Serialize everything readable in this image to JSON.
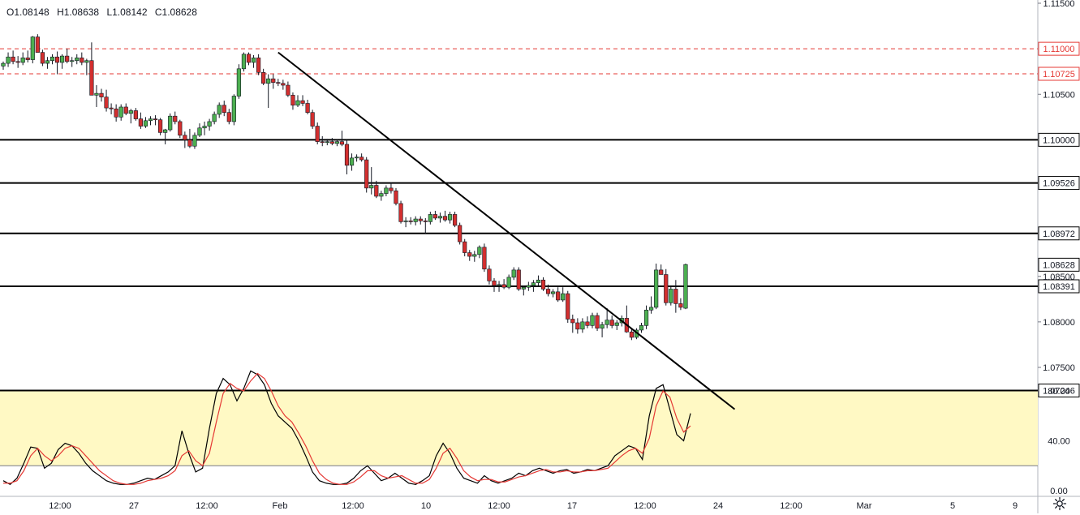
{
  "header": {
    "open": "O1.08148",
    "high": "H1.08638",
    "low": "L1.08142",
    "close": "C1.08628"
  },
  "icons": {
    "settings": "gear-icon"
  },
  "colors": {
    "up": "#26a69a",
    "up_fill": "#4caf50",
    "down": "#d32f2f",
    "support_line": "#000000",
    "resistance_dashed": "#e53935",
    "stoch_band": "#fff9c4",
    "stoch_k": "#000000",
    "stoch_d": "#e53935"
  },
  "chart_data": [
    {
      "type": "candlestick",
      "title": "",
      "ylim": [
        1.0705,
        1.1155
      ],
      "y_ticks": [
        "1.11500",
        "1.10500",
        "1.08500",
        "1.08000",
        "1.07500"
      ],
      "x_ticks": [
        "12:00",
        "27",
        "12:00",
        "Feb",
        "12:00",
        "10",
        "12:00",
        "17",
        "12:00",
        "24",
        "12:00",
        "Mar",
        "5",
        "9"
      ],
      "horizontal_lines": [
        {
          "value": 1.1,
          "label": "1.10000",
          "style": "solid"
        },
        {
          "value": 1.09526,
          "label": "1.09526",
          "style": "solid"
        },
        {
          "value": 1.08972,
          "label": "1.08972",
          "style": "solid"
        },
        {
          "value": 1.08391,
          "label": "1.08391",
          "style": "solid"
        },
        {
          "value": 1.07246,
          "label": "1.07246",
          "style": "solid"
        },
        {
          "value": 1.11,
          "label": "1.11000",
          "style": "dashed"
        },
        {
          "value": 1.10725,
          "label": "1.10725",
          "style": "dashed"
        }
      ],
      "last_price_label": "1.08628",
      "trendline": {
        "from": [
          56,
          1.1096
        ],
        "to": [
          149,
          1.0704
        ]
      },
      "candles": [
        [
          1.1081,
          1.1086,
          1.1077,
          1.1084
        ],
        [
          1.1084,
          1.1096,
          1.108,
          1.1091
        ],
        [
          1.1091,
          1.1098,
          1.1083,
          1.1086
        ],
        [
          1.1086,
          1.1092,
          1.1079,
          1.1085
        ],
        [
          1.1085,
          1.1096,
          1.1082,
          1.109
        ],
        [
          1.109,
          1.1098,
          1.1085,
          1.1088
        ],
        [
          1.1088,
          1.1114,
          1.1084,
          1.1113
        ],
        [
          1.1113,
          1.1116,
          1.1096,
          1.1096
        ],
        [
          1.1096,
          1.1099,
          1.1081,
          1.1084
        ],
        [
          1.1084,
          1.1091,
          1.1078,
          1.1087
        ],
        [
          1.1087,
          1.1094,
          1.1083,
          1.1091
        ],
        [
          1.1091,
          1.1097,
          1.1072,
          1.1085
        ],
        [
          1.1085,
          1.1094,
          1.1078,
          1.1092
        ],
        [
          1.1092,
          1.11,
          1.1084,
          1.1086
        ],
        [
          1.1086,
          1.1091,
          1.108,
          1.1087
        ],
        [
          1.1087,
          1.1094,
          1.1083,
          1.109
        ],
        [
          1.109,
          1.1096,
          1.1082,
          1.1085
        ],
        [
          1.1085,
          1.1089,
          1.1071,
          1.1087
        ],
        [
          1.1087,
          1.1107,
          1.1049,
          1.1049
        ],
        [
          1.1049,
          1.106,
          1.1036,
          1.1051
        ],
        [
          1.1051,
          1.1056,
          1.1042,
          1.1047
        ],
        [
          1.1047,
          1.1055,
          1.1031,
          1.1035
        ],
        [
          1.1035,
          1.104,
          1.1028,
          1.1034
        ],
        [
          1.1034,
          1.1039,
          1.102,
          1.1025
        ],
        [
          1.1025,
          1.1039,
          1.1021,
          1.1036
        ],
        [
          1.1036,
          1.104,
          1.1027,
          1.1029
        ],
        [
          1.1029,
          1.1034,
          1.1018,
          1.1032
        ],
        [
          1.1032,
          1.1035,
          1.1021,
          1.1023
        ],
        [
          1.1023,
          1.103,
          1.1012,
          1.1015
        ],
        [
          1.1015,
          1.1025,
          1.1013,
          1.1021
        ],
        [
          1.1021,
          1.1026,
          1.1016,
          1.1023
        ],
        [
          1.1023,
          1.1027,
          1.1016,
          1.1022
        ],
        [
          1.1022,
          1.1024,
          1.1005,
          1.1008
        ],
        [
          1.1008,
          1.1012,
          1.0995,
          1.1011
        ],
        [
          1.1011,
          1.1029,
          1.1009,
          1.1026
        ],
        [
          1.1026,
          1.1031,
          1.1017,
          1.102
        ],
        [
          1.102,
          1.1022,
          1.1002,
          1.1005
        ],
        [
          1.1005,
          1.1009,
          1.0991,
          1.1
        ],
        [
          1.1,
          1.1012,
          1.0991,
          1.0993
        ],
        [
          1.0993,
          1.1008,
          1.099,
          1.1005
        ],
        [
          1.1005,
          1.1018,
          1.1003,
          1.1013
        ],
        [
          1.1013,
          1.102,
          1.1005,
          1.1015
        ],
        [
          1.1015,
          1.1023,
          1.101,
          1.102
        ],
        [
          1.102,
          1.1031,
          1.1017,
          1.1028
        ],
        [
          1.1028,
          1.1041,
          1.1024,
          1.1038
        ],
        [
          1.1038,
          1.1043,
          1.1026,
          1.103
        ],
        [
          1.103,
          1.1034,
          1.1017,
          1.102
        ],
        [
          1.102,
          1.105,
          1.1016,
          1.1048
        ],
        [
          1.1048,
          1.1083,
          1.1045,
          1.1078
        ],
        [
          1.1078,
          1.1096,
          1.1075,
          1.1094
        ],
        [
          1.1094,
          1.1096,
          1.1082,
          1.1085
        ],
        [
          1.1085,
          1.1093,
          1.1079,
          1.109
        ],
        [
          1.109,
          1.1094,
          1.1071,
          1.1074
        ],
        [
          1.1074,
          1.1078,
          1.106,
          1.1062
        ],
        [
          1.1062,
          1.1072,
          1.1035,
          1.1067
        ],
        [
          1.1067,
          1.1072,
          1.1056,
          1.1063
        ],
        [
          1.1063,
          1.1067,
          1.1059,
          1.1062
        ],
        [
          1.1062,
          1.1066,
          1.1055,
          1.106
        ],
        [
          1.106,
          1.1064,
          1.1047,
          1.1049
        ],
        [
          1.1049,
          1.1052,
          1.1033,
          1.1038
        ],
        [
          1.1038,
          1.1049,
          1.1036,
          1.1043
        ],
        [
          1.1043,
          1.1049,
          1.1037,
          1.104
        ],
        [
          1.104,
          1.1044,
          1.1028,
          1.103
        ],
        [
          1.103,
          1.1033,
          1.1012,
          1.1015
        ],
        [
          1.1015,
          1.1019,
          1.0995,
          1.0998
        ],
        [
          1.0998,
          1.1004,
          1.0993,
          1.0997
        ],
        [
          1.0997,
          1.1001,
          1.0994,
          1.0998
        ],
        [
          1.0998,
          1.1002,
          1.0994,
          1.0996
        ],
        [
          1.0996,
          1.1,
          1.0993,
          1.0998
        ],
        [
          1.0998,
          1.101,
          1.0993,
          1.0995
        ],
        [
          1.0995,
          1.1,
          1.0962,
          1.0972
        ],
        [
          1.0972,
          1.0985,
          1.0966,
          1.098
        ],
        [
          1.098,
          1.0984,
          1.0976,
          1.0981
        ],
        [
          1.0981,
          1.0985,
          1.0976,
          1.0978
        ],
        [
          1.0978,
          1.0981,
          1.0942,
          1.0947
        ],
        [
          1.0947,
          1.097,
          1.094,
          1.095
        ],
        [
          1.095,
          1.0955,
          1.0936,
          1.0938
        ],
        [
          1.0938,
          1.0944,
          1.0933,
          1.0941
        ],
        [
          1.0941,
          1.095,
          1.0938,
          1.0947
        ],
        [
          1.0947,
          1.0953,
          1.0941,
          1.0944
        ],
        [
          1.0944,
          1.0947,
          1.0928,
          1.093
        ],
        [
          1.093,
          1.0933,
          1.0908,
          1.091
        ],
        [
          1.091,
          1.0915,
          1.0904,
          1.0911
        ],
        [
          1.0911,
          1.0915,
          1.0907,
          1.091
        ],
        [
          1.091,
          1.0916,
          1.0906,
          1.0913
        ],
        [
          1.0913,
          1.0916,
          1.0907,
          1.0911
        ],
        [
          1.0911,
          1.0914,
          1.0897,
          1.091
        ],
        [
          1.091,
          1.0921,
          1.0907,
          1.0918
        ],
        [
          1.0918,
          1.0922,
          1.0912,
          1.0914
        ],
        [
          1.0914,
          1.092,
          1.0909,
          1.0916
        ],
        [
          1.0916,
          1.0922,
          1.091,
          1.0912
        ],
        [
          1.0912,
          1.0921,
          1.0908,
          1.0918
        ],
        [
          1.0918,
          1.0921,
          1.0904,
          1.0906
        ],
        [
          1.0906,
          1.0909,
          1.0885,
          1.0888
        ],
        [
          1.0888,
          1.0891,
          1.0872,
          1.0876
        ],
        [
          1.0876,
          1.0879,
          1.0867,
          1.0872
        ],
        [
          1.0872,
          1.0878,
          1.0866,
          1.0874
        ],
        [
          1.0874,
          1.0884,
          1.087,
          1.0882
        ],
        [
          1.0882,
          1.0886,
          1.0855,
          1.0858
        ],
        [
          1.0858,
          1.0862,
          1.0841,
          1.0845
        ],
        [
          1.0845,
          1.0848,
          1.0833,
          1.084
        ],
        [
          1.084,
          1.0845,
          1.0833,
          1.0841
        ],
        [
          1.0841,
          1.0847,
          1.0836,
          1.0838
        ],
        [
          1.0838,
          1.0852,
          1.0836,
          1.0849
        ],
        [
          1.0849,
          1.086,
          1.0846,
          1.0857
        ],
        [
          1.0857,
          1.086,
          1.0834,
          1.0836
        ],
        [
          1.0836,
          1.084,
          1.0829,
          1.0838
        ],
        [
          1.0838,
          1.0844,
          1.0834,
          1.084
        ],
        [
          1.084,
          1.0846,
          1.0833,
          1.0843
        ],
        [
          1.0843,
          1.0851,
          1.084,
          1.0846
        ],
        [
          1.0846,
          1.0849,
          1.0834,
          1.0836
        ],
        [
          1.0836,
          1.0841,
          1.0828,
          1.0831
        ],
        [
          1.0831,
          1.0836,
          1.0827,
          1.0833
        ],
        [
          1.0833,
          1.0838,
          1.0822,
          1.0824
        ],
        [
          1.0824,
          1.0838,
          1.0822,
          1.0831
        ],
        [
          1.0831,
          1.0834,
          1.0799,
          1.0803
        ],
        [
          1.0803,
          1.0808,
          1.0788,
          1.0799
        ],
        [
          1.0799,
          1.0804,
          1.0787,
          1.0792
        ],
        [
          1.0792,
          1.0804,
          1.0788,
          1.08
        ],
        [
          1.08,
          1.0806,
          1.0793,
          1.0796
        ],
        [
          1.0796,
          1.081,
          1.0793,
          1.0807
        ],
        [
          1.0807,
          1.081,
          1.079,
          1.0793
        ],
        [
          1.0793,
          1.08,
          1.0783,
          1.0797
        ],
        [
          1.0797,
          1.0815,
          1.0793,
          1.0802
        ],
        [
          1.0802,
          1.0807,
          1.0793,
          1.0796
        ],
        [
          1.0796,
          1.0802,
          1.0791,
          1.0799
        ],
        [
          1.0799,
          1.0807,
          1.0795,
          1.0804
        ],
        [
          1.0804,
          1.0818,
          1.0788,
          1.0789
        ],
        [
          1.0789,
          1.0793,
          1.078,
          1.0783
        ],
        [
          1.0783,
          1.0793,
          1.0781,
          1.0791
        ],
        [
          1.0791,
          1.0799,
          1.0788,
          1.0796
        ],
        [
          1.0796,
          1.0818,
          1.0792,
          1.0813
        ],
        [
          1.0813,
          1.0828,
          1.0809,
          1.0816
        ],
        [
          1.0816,
          1.0864,
          1.0814,
          1.0857
        ],
        [
          1.0857,
          1.0863,
          1.0852,
          1.0852
        ],
        [
          1.0852,
          1.0858,
          1.0818,
          1.0821
        ],
        [
          1.0821,
          1.0839,
          1.0818,
          1.0836
        ],
        [
          1.0836,
          1.0846,
          1.081,
          1.082
        ],
        [
          1.082,
          1.0826,
          1.0813,
          1.0816
        ],
        [
          1.0815,
          1.0864,
          1.0814,
          1.0863
        ]
      ]
    },
    {
      "type": "line",
      "title": "",
      "ylim": [
        0,
        100
      ],
      "y_ticks": [
        "80.00",
        "40.00",
        "0.00"
      ],
      "band": [
        20,
        80
      ],
      "series": [
        {
          "values": [
            8,
            5,
            10,
            22,
            35,
            34,
            18,
            22,
            33,
            38,
            36,
            30,
            22,
            16,
            12,
            8,
            6,
            5,
            5,
            6,
            8,
            10,
            9,
            12,
            15,
            20,
            48,
            30,
            15,
            18,
            50,
            78,
            90,
            85,
            72,
            82,
            96,
            93,
            85,
            70,
            60,
            55,
            50,
            40,
            28,
            15,
            8,
            6,
            5,
            5,
            6,
            10,
            16,
            20,
            14,
            8,
            10,
            14,
            10,
            6,
            5,
            8,
            12,
            28,
            38,
            30,
            18,
            10,
            8,
            6,
            12,
            8,
            6,
            8,
            10,
            14,
            12,
            16,
            18,
            16,
            14,
            16,
            17,
            14,
            15,
            17,
            16,
            18,
            20,
            28,
            32,
            36,
            34,
            25,
            60,
            82,
            85,
            65,
            45,
            40,
            62
          ]
        },
        {
          "values": [
            6,
            6,
            8,
            16,
            28,
            34,
            28,
            24,
            28,
            34,
            36,
            34,
            28,
            22,
            16,
            12,
            8,
            6,
            5,
            5,
            6,
            8,
            9,
            10,
            12,
            16,
            28,
            32,
            24,
            20,
            30,
            55,
            78,
            86,
            82,
            80,
            88,
            94,
            90,
            80,
            68,
            60,
            55,
            46,
            36,
            24,
            14,
            9,
            6,
            5,
            5,
            7,
            11,
            16,
            16,
            12,
            10,
            11,
            12,
            9,
            6,
            6,
            9,
            18,
            30,
            34,
            26,
            16,
            11,
            8,
            9,
            9,
            7,
            7,
            9,
            11,
            12,
            14,
            16,
            17,
            15,
            15,
            16,
            15,
            15,
            16,
            16,
            17,
            18,
            23,
            28,
            32,
            34,
            30,
            42,
            68,
            80,
            75,
            58,
            47,
            52
          ]
        }
      ]
    }
  ]
}
